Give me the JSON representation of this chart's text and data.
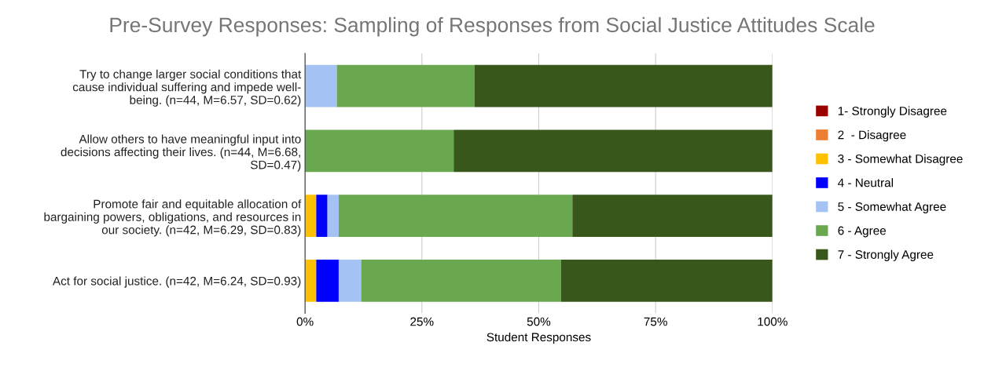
{
  "chart_data": {
    "type": "bar",
    "orientation": "horizontal",
    "stacked": true,
    "title": "Pre-Survey Responses: Sampling of Responses from Social Justice Attitudes Scale",
    "xlabel": "Student Responses",
    "categories": [
      "Try to change larger social conditions that\ncause individual suffering and impede well-\nbeing. (n=44, M=6.57, SD=0.62)",
      "Allow others to have meaningful input into\ndecisions affecting their lives. (n=44, M=6.68,\nSD=0.47)",
      "Promote fair and equitable allocation of\nbargaining powers, obligations, and resources in\nour society. (n=42, M=6.29, SD=0.83)",
      "Act for social justice. (n=42, M=6.24, SD=0.93)"
    ],
    "series": [
      {
        "name": "1- Strongly Disagree",
        "color": "#990000",
        "values": [
          0,
          0,
          0,
          0
        ]
      },
      {
        "name": "2  - Disagree",
        "color": "#ed7d31",
        "values": [
          0,
          0,
          0,
          0
        ]
      },
      {
        "name": "3 - Somewhat Disagree",
        "color": "#ffc000",
        "values": [
          0,
          0,
          2.4,
          2.4
        ]
      },
      {
        "name": "4 - Neutral",
        "color": "#0000ff",
        "values": [
          0,
          0,
          2.4,
          4.8
        ]
      },
      {
        "name": "5 - Somewhat Agree",
        "color": "#a4c2f4",
        "values": [
          6.8,
          0,
          2.4,
          4.8
        ]
      },
      {
        "name": "6 - Agree",
        "color": "#6aa84f",
        "values": [
          29.5,
          31.8,
          50,
          42.8
        ]
      },
      {
        "name": "7 - Strongly Agree",
        "color": "#38571a",
        "values": [
          63.7,
          68.2,
          42.8,
          45.2
        ]
      }
    ],
    "xlim": [
      0,
      100
    ],
    "xticks": [
      {
        "value": 0,
        "label": "0%"
      },
      {
        "value": 25,
        "label": "25%"
      },
      {
        "value": 50,
        "label": "50%"
      },
      {
        "value": 75,
        "label": "75%"
      },
      {
        "value": 100,
        "label": "100%"
      }
    ],
    "grid": "x",
    "legend": "right"
  }
}
